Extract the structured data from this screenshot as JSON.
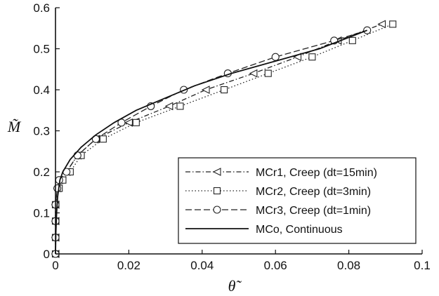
{
  "chart_data": {
    "type": "line",
    "xlabel": "θ̃",
    "ylabel": "M̃",
    "xlim": [
      0,
      0.1
    ],
    "ylim": [
      0,
      0.6
    ],
    "x_ticks": [
      "0",
      "0.02",
      "0.04",
      "0.06",
      "0.08",
      "0.1"
    ],
    "y_ticks": [
      "0",
      "0.1",
      "0.2",
      "0.3",
      "0.4",
      "0.5",
      "0.6"
    ],
    "grid": false,
    "legend_position": "bottom-right",
    "series": [
      {
        "name": "MCr1, Creep (dt=15min)",
        "line_style": "dash-dot",
        "marker": "triangle-left",
        "color": "#222222",
        "points": [
          [
            0,
            0
          ],
          [
            0,
            0.04
          ],
          [
            0,
            0.08
          ],
          [
            0,
            0.12
          ],
          [
            0.0005,
            0.16
          ],
          [
            0.001,
            0.18
          ],
          [
            0.003,
            0.2
          ],
          [
            0.006,
            0.24
          ],
          [
            0.011,
            0.28
          ],
          [
            0.02,
            0.32
          ],
          [
            0.031,
            0.36
          ],
          [
            0.041,
            0.4
          ],
          [
            0.054,
            0.44
          ],
          [
            0.066,
            0.48
          ],
          [
            0.077,
            0.52
          ],
          [
            0.089,
            0.56
          ]
        ]
      },
      {
        "name": "MCr2, Creep (dt=3min)",
        "line_style": "dotted",
        "marker": "square",
        "color": "#222222",
        "points": [
          [
            0,
            0
          ],
          [
            0,
            0.04
          ],
          [
            0,
            0.08
          ],
          [
            0,
            0.12
          ],
          [
            0.001,
            0.16
          ],
          [
            0.002,
            0.18
          ],
          [
            0.004,
            0.2
          ],
          [
            0.007,
            0.24
          ],
          [
            0.013,
            0.28
          ],
          [
            0.022,
            0.32
          ],
          [
            0.034,
            0.36
          ],
          [
            0.046,
            0.4
          ],
          [
            0.058,
            0.44
          ],
          [
            0.07,
            0.48
          ],
          [
            0.081,
            0.52
          ],
          [
            0.092,
            0.56
          ]
        ]
      },
      {
        "name": "MCr3, Creep (dt=1min)",
        "line_style": "dashed",
        "marker": "circle",
        "color": "#222222",
        "points": [
          [
            0,
            0
          ],
          [
            0,
            0.04
          ],
          [
            0,
            0.08
          ],
          [
            0,
            0.12
          ],
          [
            0.0005,
            0.16
          ],
          [
            0.001,
            0.18
          ],
          [
            0.003,
            0.2
          ],
          [
            0.006,
            0.24
          ],
          [
            0.011,
            0.28
          ],
          [
            0.018,
            0.32
          ],
          [
            0.026,
            0.36
          ],
          [
            0.035,
            0.4
          ],
          [
            0.047,
            0.44
          ],
          [
            0.06,
            0.48
          ],
          [
            0.076,
            0.52
          ],
          [
            0.085,
            0.545
          ]
        ]
      },
      {
        "name": "MCo, Continuous",
        "line_style": "solid",
        "marker": "none",
        "color": "#111111",
        "points": [
          [
            0,
            0
          ],
          [
            0.0001,
            0.05
          ],
          [
            0.0003,
            0.1
          ],
          [
            0.0006,
            0.14
          ],
          [
            0.0012,
            0.18
          ],
          [
            0.002,
            0.2
          ],
          [
            0.004,
            0.23
          ],
          [
            0.007,
            0.26
          ],
          [
            0.011,
            0.29
          ],
          [
            0.016,
            0.32
          ],
          [
            0.022,
            0.35
          ],
          [
            0.03,
            0.38
          ],
          [
            0.038,
            0.41
          ],
          [
            0.048,
            0.44
          ],
          [
            0.06,
            0.47
          ],
          [
            0.072,
            0.5
          ],
          [
            0.085,
            0.545
          ]
        ]
      }
    ]
  }
}
